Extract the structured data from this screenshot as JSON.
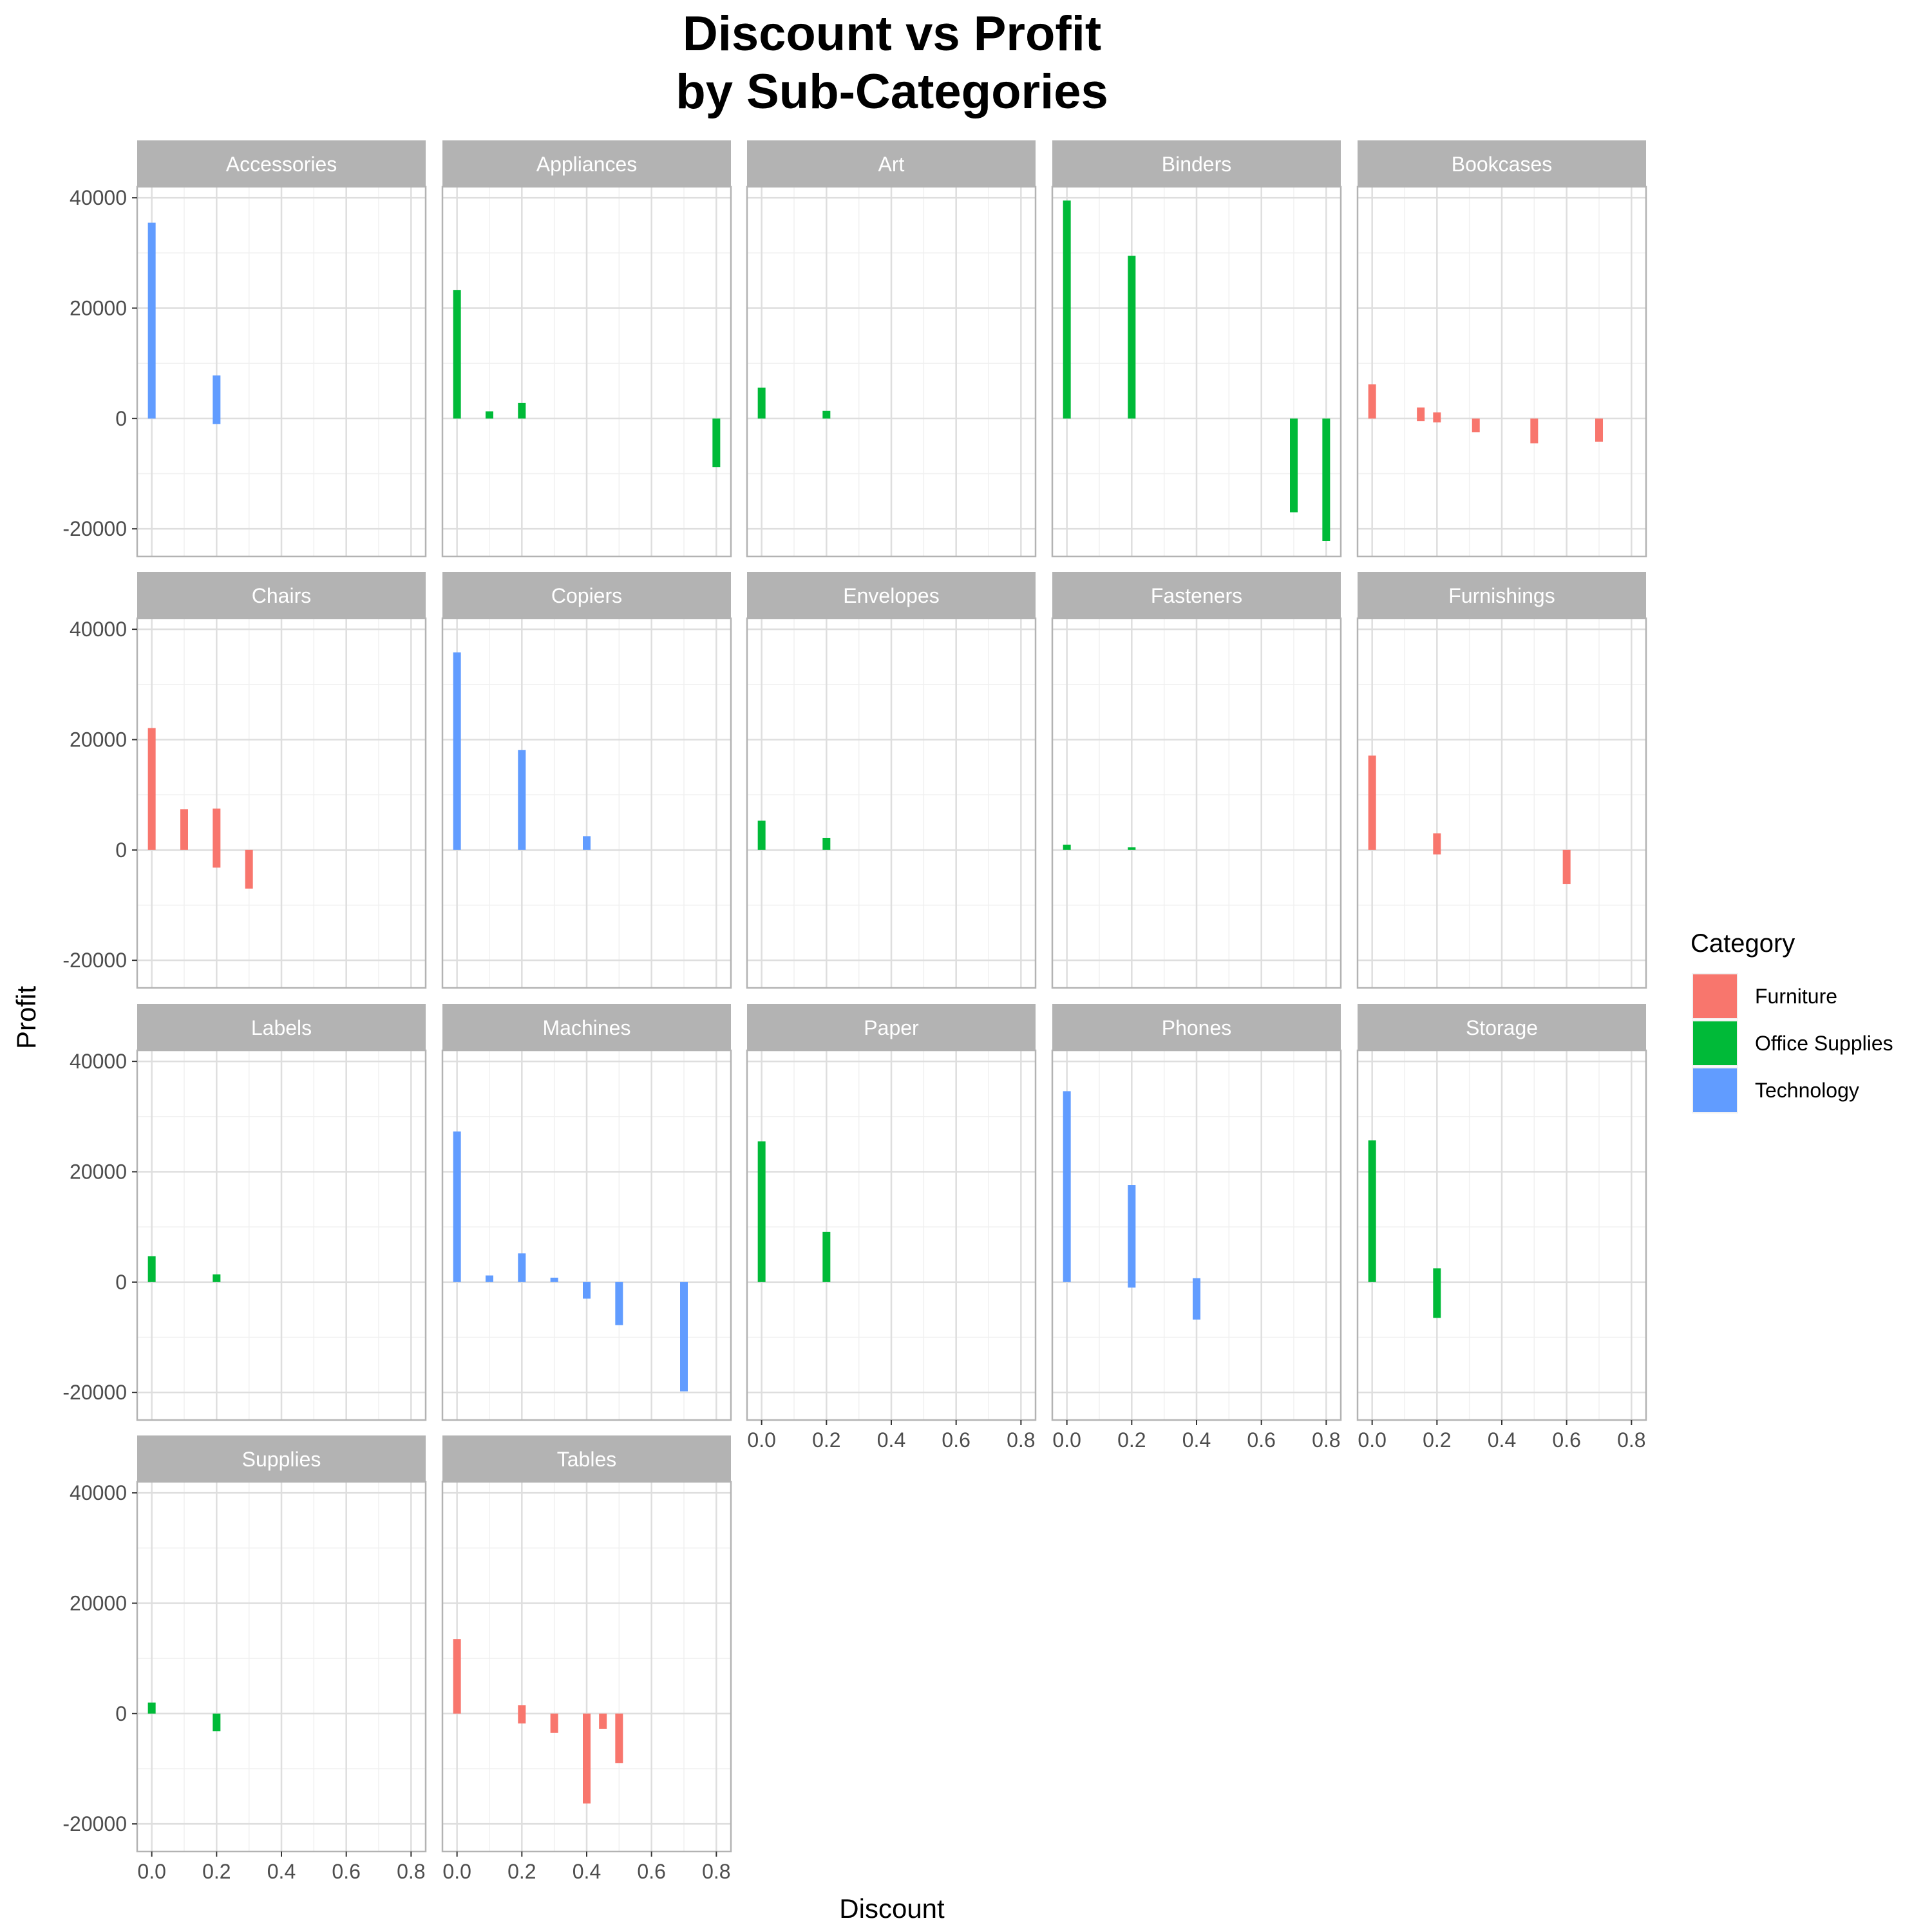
{
  "chart_data": {
    "type": "bar",
    "title_lines": [
      "Discount vs Profit",
      "by Sub-Categories"
    ],
    "xlabel": "Discount",
    "ylabel": "Profit",
    "xlim": [
      -0.045,
      0.845
    ],
    "ylim": [
      -25000,
      42000
    ],
    "x_ticks": [
      0.0,
      0.2,
      0.4,
      0.6,
      0.8
    ],
    "x_tick_labels": [
      "0.0",
      "0.2",
      "0.4",
      "0.6",
      "0.8"
    ],
    "y_ticks": [
      -20000,
      0,
      20000,
      40000
    ],
    "y_tick_labels": [
      "-20000",
      "0",
      "20000",
      "40000"
    ],
    "grid": true,
    "facet_layout": "wrap 5 columns",
    "legend": {
      "title": "Category",
      "position": "right",
      "entries": [
        {
          "name": "Furniture",
          "color": "#F8766D"
        },
        {
          "name": "Office Supplies",
          "color": "#00BA38"
        },
        {
          "name": "Technology",
          "color": "#619CFF"
        }
      ]
    },
    "facets": [
      {
        "name": "Accessories",
        "category": "Technology",
        "bars": [
          {
            "x": 0.0,
            "ymin": 0,
            "ymax": 35500
          },
          {
            "x": 0.2,
            "ymin": -1000,
            "ymax": 7800
          }
        ]
      },
      {
        "name": "Appliances",
        "category": "Office Supplies",
        "bars": [
          {
            "x": 0.0,
            "ymin": 0,
            "ymax": 23300
          },
          {
            "x": 0.1,
            "ymin": 0,
            "ymax": 1300
          },
          {
            "x": 0.2,
            "ymin": 0,
            "ymax": 2800
          },
          {
            "x": 0.8,
            "ymin": -8800,
            "ymax": 0
          }
        ]
      },
      {
        "name": "Art",
        "category": "Office Supplies",
        "bars": [
          {
            "x": 0.0,
            "ymin": 0,
            "ymax": 5600
          },
          {
            "x": 0.2,
            "ymin": 0,
            "ymax": 1400
          }
        ]
      },
      {
        "name": "Binders",
        "category": "Office Supplies",
        "bars": [
          {
            "x": 0.0,
            "ymin": 0,
            "ymax": 39500
          },
          {
            "x": 0.2,
            "ymin": 0,
            "ymax": 29500
          },
          {
            "x": 0.7,
            "ymin": -17000,
            "ymax": 0
          },
          {
            "x": 0.8,
            "ymin": -22200,
            "ymax": 0
          }
        ]
      },
      {
        "name": "Bookcases",
        "category": "Furniture",
        "bars": [
          {
            "x": 0.0,
            "ymin": 0,
            "ymax": 6200
          },
          {
            "x": 0.15,
            "ymin": -500,
            "ymax": 2000
          },
          {
            "x": 0.2,
            "ymin": -700,
            "ymax": 1100
          },
          {
            "x": 0.32,
            "ymin": -2500,
            "ymax": 0
          },
          {
            "x": 0.5,
            "ymin": -4500,
            "ymax": 0
          },
          {
            "x": 0.7,
            "ymin": -4200,
            "ymax": 0
          }
        ]
      },
      {
        "name": "Chairs",
        "category": "Furniture",
        "bars": [
          {
            "x": 0.0,
            "ymin": 0,
            "ymax": 22100
          },
          {
            "x": 0.1,
            "ymin": 0,
            "ymax": 7400
          },
          {
            "x": 0.2,
            "ymin": -3200,
            "ymax": 7500
          },
          {
            "x": 0.3,
            "ymin": -7000,
            "ymax": 0
          }
        ]
      },
      {
        "name": "Copiers",
        "category": "Technology",
        "bars": [
          {
            "x": 0.0,
            "ymin": 0,
            "ymax": 35800
          },
          {
            "x": 0.2,
            "ymin": 0,
            "ymax": 18100
          },
          {
            "x": 0.4,
            "ymin": 0,
            "ymax": 2500
          }
        ]
      },
      {
        "name": "Envelopes",
        "category": "Office Supplies",
        "bars": [
          {
            "x": 0.0,
            "ymin": 0,
            "ymax": 5300
          },
          {
            "x": 0.2,
            "ymin": 0,
            "ymax": 2200
          }
        ]
      },
      {
        "name": "Fasteners",
        "category": "Office Supplies",
        "bars": [
          {
            "x": 0.0,
            "ymin": 0,
            "ymax": 950
          },
          {
            "x": 0.2,
            "ymin": 0,
            "ymax": 500
          }
        ]
      },
      {
        "name": "Furnishings",
        "category": "Furniture",
        "bars": [
          {
            "x": 0.0,
            "ymin": 0,
            "ymax": 17100
          },
          {
            "x": 0.2,
            "ymin": -800,
            "ymax": 3000
          },
          {
            "x": 0.6,
            "ymin": -6200,
            "ymax": 0
          }
        ]
      },
      {
        "name": "Labels",
        "category": "Office Supplies",
        "bars": [
          {
            "x": 0.0,
            "ymin": 0,
            "ymax": 4700
          },
          {
            "x": 0.2,
            "ymin": 0,
            "ymax": 1400
          }
        ]
      },
      {
        "name": "Machines",
        "category": "Technology",
        "bars": [
          {
            "x": 0.0,
            "ymin": 0,
            "ymax": 27300
          },
          {
            "x": 0.1,
            "ymin": 0,
            "ymax": 1200
          },
          {
            "x": 0.2,
            "ymin": 0,
            "ymax": 5200
          },
          {
            "x": 0.3,
            "ymin": 0,
            "ymax": 800
          },
          {
            "x": 0.4,
            "ymin": -3000,
            "ymax": 0
          },
          {
            "x": 0.5,
            "ymin": -7800,
            "ymax": 0
          },
          {
            "x": 0.7,
            "ymin": -19800,
            "ymax": 0
          }
        ]
      },
      {
        "name": "Paper",
        "category": "Office Supplies",
        "bars": [
          {
            "x": 0.0,
            "ymin": 0,
            "ymax": 25500
          },
          {
            "x": 0.2,
            "ymin": 0,
            "ymax": 9100
          }
        ]
      },
      {
        "name": "Phones",
        "category": "Technology",
        "bars": [
          {
            "x": 0.0,
            "ymin": 0,
            "ymax": 34600
          },
          {
            "x": 0.2,
            "ymin": -1000,
            "ymax": 17600
          },
          {
            "x": 0.4,
            "ymin": -6800,
            "ymax": 700
          }
        ]
      },
      {
        "name": "Storage",
        "category": "Office Supplies",
        "bars": [
          {
            "x": 0.0,
            "ymin": 0,
            "ymax": 25700
          },
          {
            "x": 0.2,
            "ymin": -6500,
            "ymax": 2500
          }
        ]
      },
      {
        "name": "Supplies",
        "category": "Office Supplies",
        "bars": [
          {
            "x": 0.0,
            "ymin": 0,
            "ymax": 2000
          },
          {
            "x": 0.2,
            "ymin": -3200,
            "ymax": 0
          }
        ]
      },
      {
        "name": "Tables",
        "category": "Furniture",
        "bars": [
          {
            "x": 0.0,
            "ymin": 0,
            "ymax": 13500
          },
          {
            "x": 0.2,
            "ymin": -1800,
            "ymax": 1500
          },
          {
            "x": 0.3,
            "ymin": -3500,
            "ymax": 0
          },
          {
            "x": 0.4,
            "ymin": -16300,
            "ymax": 0
          },
          {
            "x": 0.45,
            "ymin": -2800,
            "ymax": 0
          },
          {
            "x": 0.5,
            "ymin": -9000,
            "ymax": 0
          }
        ]
      }
    ]
  },
  "colors": {
    "strip_background": "#b3b3b3",
    "panel_border": "#b3b3b3",
    "grid_major": "#dedede",
    "grid_minor": "#f0f0f0"
  }
}
